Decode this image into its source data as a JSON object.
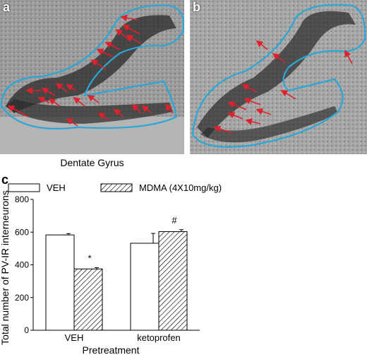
{
  "panels": [
    {
      "letter": "a"
    },
    {
      "letter": "b"
    }
  ],
  "panel_caption": "Dentate Gyrus",
  "colors": {
    "outline": "#2aa7d6",
    "arrow": "#e0202a",
    "tissue_dark": "#2a2a2a",
    "tissue_light": "#a9a9a9"
  },
  "chart_data": {
    "type": "bar",
    "panel_letter": "c",
    "categories": [
      "VEH",
      "ketoprofen"
    ],
    "series": [
      {
        "name": "VEH",
        "values": [
          583,
          532
        ],
        "errors": [
          8,
          60
        ],
        "pattern": "open"
      },
      {
        "name": "MDMA (4X10mg/kg)",
        "values": [
          375,
          603
        ],
        "errors": [
          8,
          12
        ],
        "pattern": "hatched"
      }
    ],
    "annotations": [
      {
        "category": "VEH",
        "series": "MDMA (4X10mg/kg)",
        "text": "*"
      },
      {
        "category": "ketoprofen",
        "series": "MDMA (4X10mg/kg)",
        "text": "#"
      }
    ],
    "xlabel": "Pretreatment",
    "ylabel": "Total number of PV-IR interneurons",
    "ylim": [
      0,
      800
    ],
    "yticks": [
      "0",
      "200",
      "400",
      "600",
      "800"
    ],
    "grid": false,
    "legend_position": "top"
  }
}
